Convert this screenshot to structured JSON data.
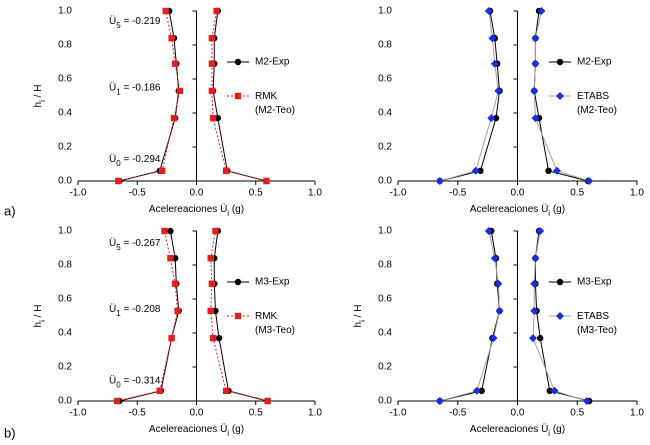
{
  "panel_labels": [
    "a)",
    "b)"
  ],
  "chart_data": [
    {
      "type": "line",
      "x_label": {
        "text": "Acelereaciones Ü",
        "sub": "i",
        "after": " (g)"
      },
      "y_label": {
        "text": "h",
        "sub": "i",
        "after": " / H"
      },
      "xlim": [
        -1,
        1
      ],
      "ylim": [
        0,
        1
      ],
      "xticks": [
        {
          "value": -1,
          "label": "-1.0"
        },
        -0.5,
        {
          "value": 0,
          "label": "0.0"
        },
        0.5,
        {
          "value": 1,
          "label": "1.0"
        }
      ],
      "yticks": [
        {
          "value": 0,
          "label": "0.0"
        },
        0.2,
        0.4,
        0.6,
        0.8,
        {
          "value": 1,
          "label": "1.0"
        }
      ],
      "y": [
        0,
        0.06,
        0.37,
        0.53,
        0.69,
        0.84,
        1.0
      ],
      "legend": "right",
      "annotations": [
        {
          "base": "Ü",
          "sub": "5",
          "text": " = -0.219"
        },
        {
          "base": "Ü",
          "sub": "1",
          "text": " = -0.186"
        },
        {
          "base": "Ü",
          "sub": "0",
          "text": " = -0.294"
        }
      ],
      "series": [
        {
          "name": "M2-Exp",
          "color": "#000000",
          "line_color": "#000000",
          "dash": false,
          "marker": "circle",
          "values": [
            0.59,
            0.26,
            0.18,
            0.14,
            0.15,
            0.15,
            0.18
          ],
          "values_min": [
            -0.65,
            -0.31,
            -0.18,
            -0.15,
            -0.17,
            -0.19,
            -0.23
          ]
        },
        {
          "name": "RMK (M2-Teo)",
          "color": "#e02020",
          "line_color": "#e02020",
          "dash": true,
          "marker": "square",
          "values": [
            0.59,
            0.25,
            0.14,
            0.13,
            0.13,
            0.13,
            0.17
          ],
          "values_min": [
            -0.66,
            -0.29,
            -0.19,
            -0.14,
            -0.18,
            -0.21,
            -0.26
          ]
        }
      ]
    },
    {
      "type": "line",
      "x_label": {
        "text": "Acelereaciones Ü",
        "sub": "i",
        "after": " (g)"
      },
      "xlim": [
        -1,
        1
      ],
      "ylim": [
        0,
        1
      ],
      "xticks": [
        {
          "value": -1,
          "label": "-1.0"
        },
        -0.5,
        {
          "value": 0,
          "label": "0.0"
        },
        0.5,
        {
          "value": 1,
          "label": "1.0"
        }
      ],
      "yticks": [
        {
          "value": 0,
          "label": "0.0"
        },
        0.2,
        0.4,
        0.6,
        0.8,
        {
          "value": 1,
          "label": "1.0"
        }
      ],
      "y": [
        0,
        0.06,
        0.37,
        0.53,
        0.69,
        0.84,
        1.0
      ],
      "legend": "right",
      "series": [
        {
          "name": "M2-Exp",
          "color": "#000000",
          "line_color": "#000000",
          "dash": false,
          "marker": "circle",
          "values": [
            0.59,
            0.26,
            0.18,
            0.14,
            0.15,
            0.15,
            0.18
          ],
          "values_min": [
            -0.65,
            -0.31,
            -0.18,
            -0.15,
            -0.17,
            -0.19,
            -0.23
          ]
        },
        {
          "name": "ETABS (M2-Teo)",
          "color": "#1a2ee0",
          "line_color": "#a0a0a0",
          "dash": false,
          "marker": "diamond",
          "values": [
            0.6,
            0.33,
            0.15,
            0.14,
            0.15,
            0.15,
            0.2
          ],
          "values_min": [
            -0.65,
            -0.35,
            -0.22,
            -0.16,
            -0.19,
            -0.21,
            -0.24
          ]
        }
      ]
    },
    {
      "type": "line",
      "x_label": {
        "text": "Acelereaciones Ü",
        "sub": "i",
        "after": " (g)"
      },
      "y_label": {
        "text": "h",
        "sub": "i",
        "after": " / H"
      },
      "xlim": [
        -1,
        1
      ],
      "ylim": [
        0,
        1
      ],
      "xticks": [
        {
          "value": -1,
          "label": "-1.0"
        },
        -0.5,
        {
          "value": 0,
          "label": "0.0"
        },
        0.5,
        {
          "value": 1,
          "label": "1.0"
        }
      ],
      "yticks": [
        {
          "value": 0,
          "label": "0.0"
        },
        0.2,
        0.4,
        0.6,
        0.8,
        {
          "value": 1,
          "label": "1.0"
        }
      ],
      "y": [
        0,
        0.06,
        0.37,
        0.53,
        0.69,
        0.84,
        1.0
      ],
      "legend": "right",
      "annotations": [
        {
          "base": "Ü",
          "sub": "5",
          "text": " = -0.267"
        },
        {
          "base": "Ü",
          "sub": "1",
          "text": " = -0.208"
        },
        {
          "base": "Ü",
          "sub": "0",
          "text": " = -0.314"
        }
      ],
      "series": [
        {
          "name": "M3-Exp",
          "color": "#000000",
          "line_color": "#000000",
          "dash": false,
          "marker": "circle",
          "values": [
            0.6,
            0.27,
            0.19,
            0.16,
            0.15,
            0.15,
            0.18
          ],
          "values_min": [
            -0.65,
            -0.3,
            -0.21,
            -0.15,
            -0.17,
            -0.18,
            -0.22
          ]
        },
        {
          "name": "RMK (M3-Teo)",
          "color": "#e02020",
          "line_color": "#e02020",
          "dash": true,
          "marker": "square",
          "values": [
            0.6,
            0.25,
            0.14,
            0.12,
            0.13,
            0.12,
            0.16
          ],
          "values_min": [
            -0.67,
            -0.31,
            -0.21,
            -0.16,
            -0.18,
            -0.22,
            -0.27
          ]
        }
      ]
    },
    {
      "type": "line",
      "x_label": {
        "text": "Acelereaciones Ü",
        "sub": "i",
        "after": " (g)"
      },
      "y_label": {
        "text": "h",
        "sub": "i",
        "after": " / H"
      },
      "xlim": [
        -1,
        1
      ],
      "ylim": [
        0,
        1
      ],
      "xticks": [
        {
          "value": -1,
          "label": "-1.0"
        },
        -0.5,
        {
          "value": 0,
          "label": "0.0"
        },
        0.5,
        {
          "value": 1,
          "label": "1.0"
        }
      ],
      "yticks": [
        {
          "value": 0,
          "label": "0.0"
        },
        0.2,
        0.4,
        0.6,
        0.8,
        {
          "value": 1,
          "label": "1.0"
        }
      ],
      "y": [
        0,
        0.06,
        0.37,
        0.53,
        0.69,
        0.84,
        1.0
      ],
      "legend": "right",
      "series": [
        {
          "name": "M3-Exp",
          "color": "#000000",
          "line_color": "#000000",
          "dash": false,
          "marker": "circle",
          "values": [
            0.6,
            0.27,
            0.19,
            0.16,
            0.15,
            0.15,
            0.18
          ],
          "values_min": [
            -0.65,
            -0.3,
            -0.21,
            -0.15,
            -0.17,
            -0.18,
            -0.22
          ]
        },
        {
          "name": "ETABS (M3-Teo)",
          "color": "#1a2ee0",
          "line_color": "#a0a0a0",
          "dash": false,
          "marker": "diamond",
          "values": [
            0.58,
            0.31,
            0.13,
            0.14,
            0.14,
            0.15,
            0.19
          ],
          "values_min": [
            -0.65,
            -0.34,
            -0.2,
            -0.15,
            -0.16,
            -0.19,
            -0.24
          ]
        }
      ]
    }
  ]
}
